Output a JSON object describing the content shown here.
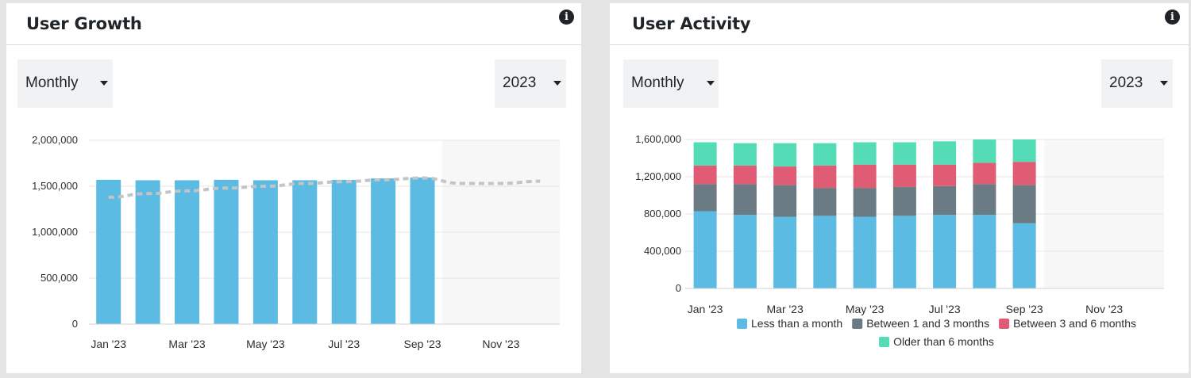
{
  "colors": {
    "blue": "#5bbbe3",
    "gray": "#6b7b83",
    "red": "#e05c74",
    "teal": "#53dcb6",
    "trend": "#c4c4c4",
    "future_shade": "#f7f7f7"
  },
  "user_growth": {
    "title": "User Growth",
    "info_icon": "info-icon",
    "period_select": "Monthly",
    "year_select": "2023"
  },
  "user_activity": {
    "title": "User Activity",
    "info_icon": "info-icon",
    "period_select": "Monthly",
    "year_select": "2023"
  },
  "chart_data": [
    {
      "type": "bar",
      "title": "User Growth",
      "categories": [
        "Jan '23",
        "Feb '23",
        "Mar '23",
        "Apr '23",
        "May '23",
        "Jun '23",
        "Jul '23",
        "Aug '23",
        "Sep '23",
        "Oct '23",
        "Nov '23",
        "Dec '23"
      ],
      "x_tick_labels": [
        "Jan '23",
        "Mar '23",
        "May '23",
        "Jul '23",
        "Sep '23",
        "Nov '23"
      ],
      "y_tick_labels": [
        "0",
        "500,000",
        "1,000,000",
        "1,500,000",
        "2,000,000"
      ],
      "ylim": [
        0,
        2000000
      ],
      "grid": true,
      "series": [
        {
          "type": "bar",
          "values": [
            1570000,
            1565000,
            1565000,
            1570000,
            1565000,
            1565000,
            1570000,
            1585000,
            1595000,
            null,
            null,
            null
          ]
        },
        {
          "type": "dashed-line",
          "values": [
            1380000,
            1420000,
            1450000,
            1480000,
            1500000,
            1530000,
            1550000,
            1570000,
            1590000,
            1530000,
            1530000,
            1555000
          ]
        }
      ],
      "shaded_future_from": "Oct '23"
    },
    {
      "type": "bar",
      "stacked": true,
      "title": "User Activity",
      "categories": [
        "Jan '23",
        "Feb '23",
        "Mar '23",
        "Apr '23",
        "May '23",
        "Jun '23",
        "Jul '23",
        "Aug '23",
        "Sep '23",
        "Oct '23",
        "Nov '23",
        "Dec '23"
      ],
      "x_tick_labels": [
        "Jan '23",
        "Mar '23",
        "May '23",
        "Jul '23",
        "Sep '23",
        "Nov '23"
      ],
      "y_tick_labels": [
        "0",
        "400,000",
        "800,000",
        "1,200,000",
        "1,600,000"
      ],
      "ylim": [
        0,
        1600000
      ],
      "grid": true,
      "legend_position": "bottom",
      "series": [
        {
          "name": "Less than a month",
          "color_key": "blue",
          "values": [
            830000,
            790000,
            770000,
            780000,
            770000,
            780000,
            790000,
            790000,
            700000,
            null,
            null,
            null
          ]
        },
        {
          "name": "Between 1 and 3 months",
          "color_key": "gray",
          "values": [
            290000,
            330000,
            340000,
            300000,
            310000,
            310000,
            310000,
            330000,
            410000,
            null,
            null,
            null
          ]
        },
        {
          "name": "Between 3 and 6 months",
          "color_key": "red",
          "values": [
            200000,
            200000,
            200000,
            240000,
            250000,
            240000,
            230000,
            230000,
            250000,
            null,
            null,
            null
          ]
        },
        {
          "name": "Older than 6 months",
          "color_key": "teal",
          "values": [
            250000,
            240000,
            250000,
            240000,
            240000,
            240000,
            250000,
            250000,
            240000,
            null,
            null,
            null
          ]
        }
      ],
      "shaded_future_from": "Oct '23"
    }
  ]
}
